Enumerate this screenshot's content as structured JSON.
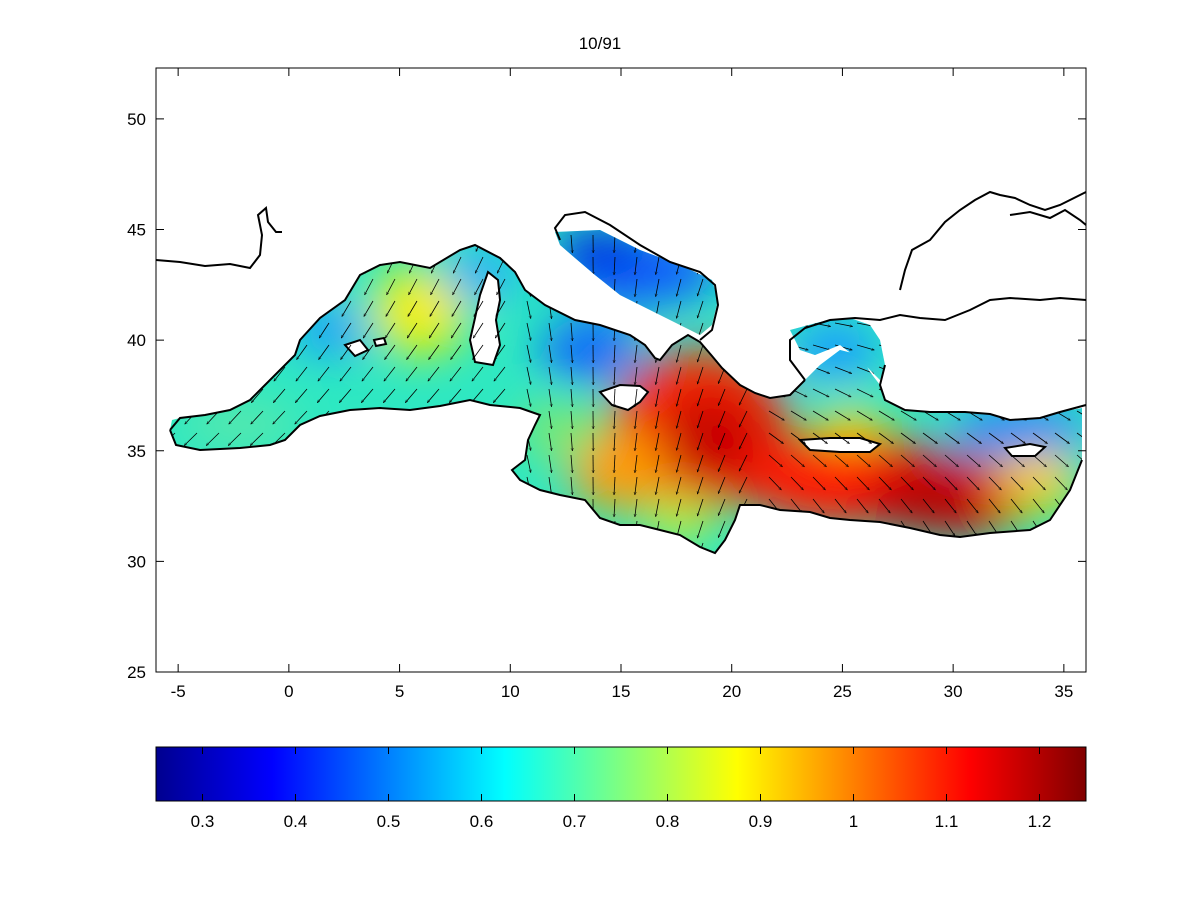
{
  "title": "10/91",
  "map": {
    "x_ticks": [
      "-5",
      "0",
      "5",
      "10",
      "15",
      "20",
      "25",
      "30",
      "35"
    ],
    "x_tick_values": [
      -5,
      0,
      5,
      10,
      15,
      20,
      25,
      30,
      35
    ],
    "y_ticks": [
      "25",
      "30",
      "35",
      "40",
      "45",
      "50"
    ],
    "y_tick_values": [
      25,
      30,
      35,
      40,
      45,
      50
    ],
    "xlim": [
      -6,
      36
    ],
    "ylim": [
      25,
      52.3
    ],
    "region": "Mediterranean Sea",
    "field": "scalar field with direction arrows (quiver) over sea grid"
  },
  "colorbar": {
    "tick_labels": [
      "0.3",
      "0.4",
      "0.5",
      "0.6",
      "0.7",
      "0.8",
      "0.9",
      "1",
      "1.1",
      "1.2"
    ],
    "tick_values": [
      0.3,
      0.4,
      0.5,
      0.6,
      0.7,
      0.8,
      0.9,
      1.0,
      1.1,
      1.2
    ],
    "range": [
      0.25,
      1.25
    ],
    "colormap": "jet"
  },
  "colors": {
    "coast": "#000000",
    "arrow": "#000000",
    "background": "#ffffff"
  }
}
